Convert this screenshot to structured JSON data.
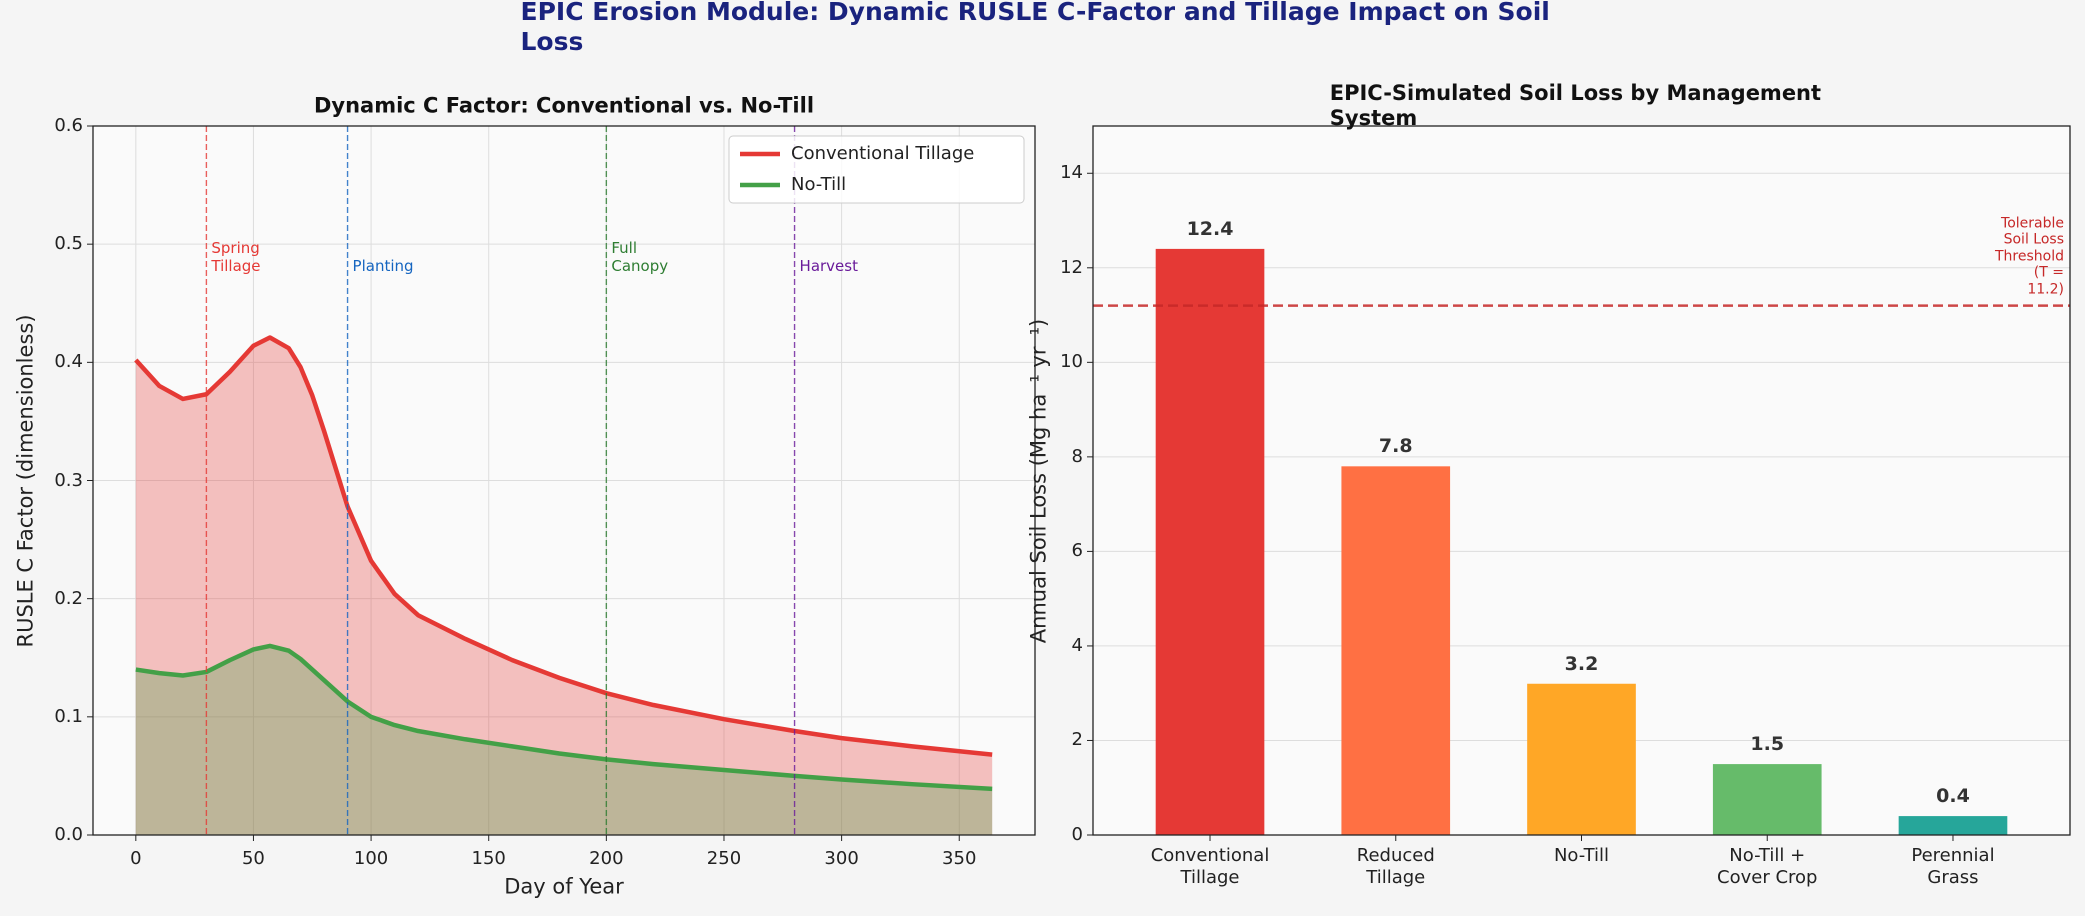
{
  "title": "EPIC Erosion Module: Dynamic RUSLE C-Factor and Tillage Impact on Soil Loss",
  "chart_data": [
    {
      "type": "line",
      "title": "Dynamic C Factor: Conventional vs. No-Till",
      "xlabel": "Day of Year",
      "ylabel": "RUSLE C Factor (dimensionless)",
      "x": [
        0,
        10,
        20,
        30,
        40,
        50,
        57,
        65,
        70,
        75,
        80,
        90,
        100,
        110,
        120,
        140,
        160,
        180,
        200,
        220,
        250,
        280,
        300,
        330,
        364
      ],
      "series": [
        {
          "name": "Conventional Tillage",
          "color": "#e53935",
          "values": [
            0.402,
            0.38,
            0.369,
            0.373,
            0.392,
            0.414,
            0.421,
            0.412,
            0.396,
            0.372,
            0.342,
            0.278,
            0.232,
            0.204,
            0.186,
            0.166,
            0.148,
            0.133,
            0.12,
            0.11,
            0.098,
            0.088,
            0.082,
            0.075,
            0.068
          ]
        },
        {
          "name": "No-Till",
          "color": "#43a047",
          "values": [
            0.14,
            0.137,
            0.135,
            0.138,
            0.148,
            0.157,
            0.16,
            0.156,
            0.149,
            0.14,
            0.131,
            0.113,
            0.1,
            0.093,
            0.088,
            0.081,
            0.075,
            0.069,
            0.064,
            0.06,
            0.055,
            0.05,
            0.047,
            0.043,
            0.039
          ]
        }
      ],
      "annotations": [
        {
          "x": 30,
          "text": "Spring\nTillage",
          "color": "#e53935"
        },
        {
          "x": 90,
          "text": "Planting",
          "color": "#1565c0"
        },
        {
          "x": 200,
          "text": "Full\nCanopy",
          "color": "#2e7d32"
        },
        {
          "x": 280,
          "text": "Harvest",
          "color": "#6a1b9a"
        }
      ],
      "xlim": [
        -18.2,
        382.2
      ],
      "xticks": [
        0,
        50,
        100,
        150,
        200,
        250,
        300,
        350
      ],
      "ylim": [
        0,
        0.6
      ],
      "yticks": [
        {
          "value": 0,
          "label": "0.0"
        },
        0.1,
        0.2,
        0.3,
        0.4,
        0.5,
        0.6
      ],
      "grid": "both",
      "legend": "upper right"
    },
    {
      "type": "bar",
      "title": "EPIC-Simulated Soil Loss by Management System",
      "ylabel": "Annual Soil Loss (Mg ha⁻¹ yr⁻¹)",
      "categories": [
        "Conventional\nTillage",
        "Reduced\nTillage",
        "No-Till",
        "No-Till +\nCover Crop",
        "Perennial\nGrass"
      ],
      "values": [
        12.4,
        7.8,
        3.2,
        1.5,
        0.4
      ],
      "colors": [
        "#e53935",
        "#ff7043",
        "#ffa726",
        "#66bb6a",
        "#26a69a"
      ],
      "threshold": {
        "value": 11.2,
        "label": "Tolerable\nSoil Loss\nThreshold\n(T = 11.2)",
        "color": "#c62828"
      },
      "ylim": [
        0,
        15
      ],
      "yticks": [
        0,
        2,
        4,
        6,
        8,
        10,
        12,
        14
      ],
      "grid": "y"
    }
  ]
}
